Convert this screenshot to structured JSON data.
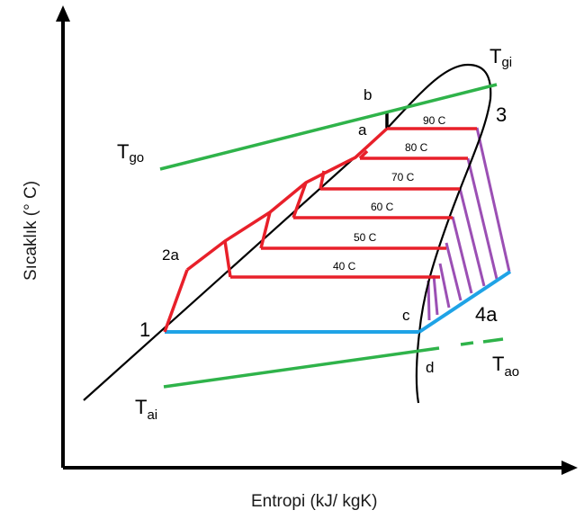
{
  "axes": {
    "x_label": "Entropi (kJ/ kgK)",
    "y_label": "Sıcaklık (° C)"
  },
  "isotherms": [
    "90 C",
    "80 C",
    "70 C",
    "60 C",
    "50 C",
    "40 C"
  ],
  "points": {
    "p1": "1",
    "p2a": "2a",
    "p3": "3",
    "p4a": "4a",
    "a": "a",
    "b": "b",
    "c": "c",
    "d": "d"
  },
  "temps": {
    "gi": {
      "main": "T",
      "sub": "gi"
    },
    "go": {
      "main": "T",
      "sub": "go"
    },
    "ai": {
      "main": "T",
      "sub": "ai"
    },
    "ao": {
      "main": "T",
      "sub": "ao"
    }
  },
  "colors": {
    "process": "#e8202a",
    "hatch": "#9b4fb4",
    "blue": "#1fa3e6",
    "green": "#2fb34a",
    "curve": "#000000"
  }
}
